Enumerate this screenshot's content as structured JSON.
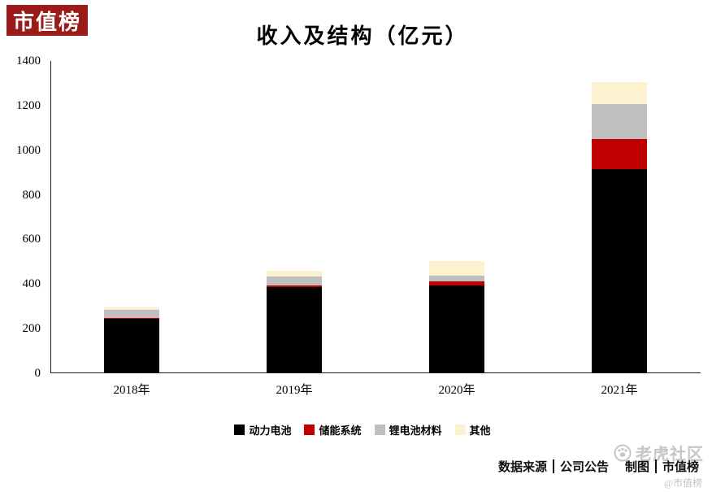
{
  "logo": {
    "text": "市值榜",
    "brand_color": "#9b1b1b"
  },
  "title": "收入及结构（亿元）",
  "chart_data": {
    "type": "bar",
    "stacked": true,
    "title": "收入及结构（亿元）",
    "xlabel": "",
    "ylabel": "",
    "categories": [
      "2018年",
      "2019年",
      "2020年",
      "2021年"
    ],
    "series": [
      {
        "name": "动力电池",
        "color": "#000000",
        "values": [
          245,
          386,
          394,
          915
        ]
      },
      {
        "name": "储能系统",
        "color": "#c00000",
        "values": [
          2,
          6,
          19,
          136
        ]
      },
      {
        "name": "锂电池材料",
        "color": "#bfbfbf",
        "values": [
          39,
          43,
          26,
          155
        ]
      },
      {
        "name": "其他",
        "color": "#fdf2cf",
        "values": [
          11,
          23,
          64,
          98
        ]
      }
    ],
    "ylim": [
      0,
      1400
    ],
    "ytick_interval": 200,
    "grid": false,
    "legend_position": "bottom"
  },
  "footer": {
    "source_label": "数据来源",
    "source_value": "公司公告",
    "credit_label": "制图",
    "credit_value": "市值榜"
  },
  "watermark": {
    "community": "老虎社区",
    "handle": "@市值榜"
  }
}
